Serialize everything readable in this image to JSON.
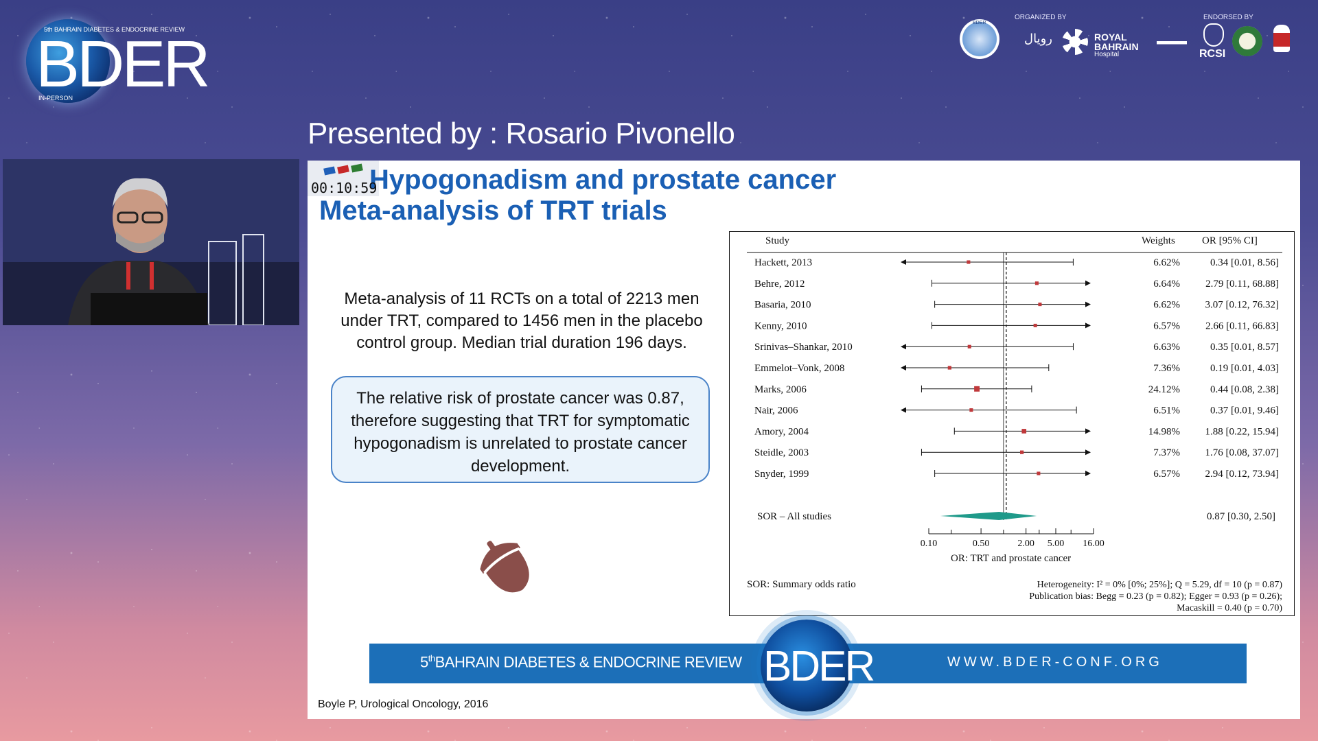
{
  "header": {
    "logo_edition": "5th BAHRAIN DIABETES & ENDOCRINE REVIEW",
    "logo_text": "BDER",
    "logo_mode": "IN-PERSON",
    "organized_by": "ORGANIZED BY",
    "endorsed_by": "ENDORSED BY",
    "royal_bahrain": "ROYAL",
    "royal_bahrain_2": "BAHRAIN",
    "royal_bahrain_3": "Hospital",
    "rcsi": "RCSI",
    "bder_small": "BDER"
  },
  "presenter": "Presented by : Rosario Pivonello",
  "timer": "00:10:59",
  "slide": {
    "title_line1": "Hypogonadism and prostate cancer",
    "title_line2": "Meta-analysis of TRT trials",
    "body": "Meta-analysis of 11 RCTs on a total of 2213 men under TRT, compared to 1456 men in the placebo control group. Median trial duration 196 days.",
    "callout": "The relative risk of prostate cancer was 0.87, therefore suggesting that TRT for symptomatic hypogonadism is unrelated to prostate cancer development.",
    "citation": "Boyle P, Urological Oncology, 2016",
    "footer_left_pre": "5",
    "footer_left_sup": "th",
    "footer_left": "BAHRAIN DIABETES & ENDOCRINE REVIEW",
    "footer_right": "WWW.BDER-CONF.ORG",
    "footer_logo": "BDER"
  },
  "chart_data": {
    "type": "forest",
    "headers": {
      "study": "Study",
      "weights": "Weights",
      "or": "OR [95% CI]"
    },
    "x_scale": "log",
    "x_ticks": [
      0.1,
      0.5,
      2.0,
      5.0,
      16.0
    ],
    "x_tick_labels": [
      "0.10",
      "0.50",
      "2.00",
      "5.00",
      "16.00"
    ],
    "xlabel": "OR: TRT and prostate cancer",
    "null_line": 1.0,
    "studies": [
      {
        "name": "Hackett, 2013",
        "or": 0.34,
        "lo": 0.01,
        "hi": 8.56,
        "weight": "6.62%",
        "ci_text": "0.34 [0.01, 8.56]"
      },
      {
        "name": "Behre, 2012",
        "or": 2.79,
        "lo": 0.11,
        "hi": 68.88,
        "weight": "6.64%",
        "ci_text": "2.79 [0.11, 68.88]"
      },
      {
        "name": "Basaria, 2010",
        "or": 3.07,
        "lo": 0.12,
        "hi": 76.32,
        "weight": "6.62%",
        "ci_text": "3.07 [0.12, 76.32]"
      },
      {
        "name": "Kenny, 2010",
        "or": 2.66,
        "lo": 0.11,
        "hi": 66.83,
        "weight": "6.57%",
        "ci_text": "2.66 [0.11, 66.83]"
      },
      {
        "name": "Srinivas–Shankar, 2010",
        "or": 0.35,
        "lo": 0.01,
        "hi": 8.57,
        "weight": "6.63%",
        "ci_text": "0.35 [0.01, 8.57]"
      },
      {
        "name": "Emmelot–Vonk, 2008",
        "or": 0.19,
        "lo": 0.01,
        "hi": 4.03,
        "weight": "7.36%",
        "ci_text": "0.19 [0.01, 4.03]"
      },
      {
        "name": "Marks, 2006",
        "or": 0.44,
        "lo": 0.08,
        "hi": 2.38,
        "weight": "24.12%",
        "ci_text": "0.44 [0.08, 2.38]"
      },
      {
        "name": "Nair, 2006",
        "or": 0.37,
        "lo": 0.01,
        "hi": 9.46,
        "weight": "6.51%",
        "ci_text": "0.37 [0.01, 9.46]"
      },
      {
        "name": "Amory, 2004",
        "or": 1.88,
        "lo": 0.22,
        "hi": 15.94,
        "weight": "14.98%",
        "ci_text": "1.88 [0.22, 15.94]"
      },
      {
        "name": "Steidle, 2003",
        "or": 1.76,
        "lo": 0.08,
        "hi": 37.07,
        "weight": "7.37%",
        "ci_text": "1.76 [0.08, 37.07]"
      },
      {
        "name": "Snyder, 1999",
        "or": 2.94,
        "lo": 0.12,
        "hi": 73.94,
        "weight": "6.57%",
        "ci_text": "2.94 [0.12, 73.94]"
      }
    ],
    "summary": {
      "name": "SOR – All studies",
      "or": 0.87,
      "lo": 0.3,
      "hi": 2.5,
      "ci_text": "0.87 [0.30, 2.50]"
    },
    "footnote_left": "SOR: Summary odds ratio",
    "footnote_right": [
      "Heterogeneity: I² = 0% [0%; 25%]; Q = 5.29, df = 10 (p = 0.87)",
      "Publication bias: Begg = 0.23 (p = 0.82); Egger = 0.93 (p = 0.26);",
      "Macaskill = 0.40 (p = 0.70)"
    ],
    "colors": {
      "marker": "#c0393b",
      "diamond": "#1f9a8a"
    }
  }
}
